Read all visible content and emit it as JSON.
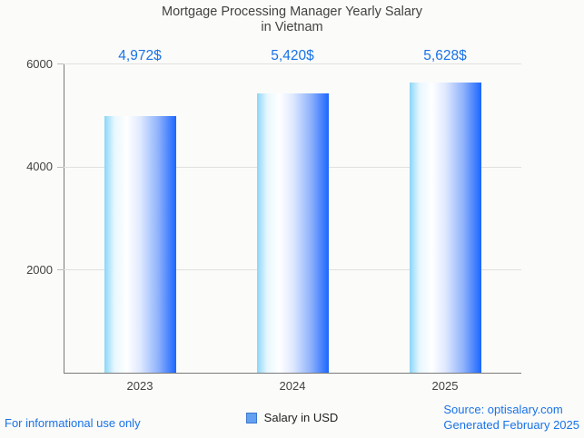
{
  "title": {
    "line1": "Mortgage Processing Manager Yearly Salary",
    "line2": "in Vietnam"
  },
  "chart_data": {
    "type": "bar",
    "title": "Mortgage Processing Manager Yearly Salary in Vietnam",
    "categories": [
      "2023",
      "2024",
      "2025"
    ],
    "values": [
      4972,
      5420,
      5628
    ],
    "value_labels": [
      "4,972$",
      "5,420$",
      "5,628$"
    ],
    "xlabel": "",
    "ylabel": "",
    "ylim": [
      0,
      6000
    ],
    "y_ticks": [
      6000,
      4000,
      2000
    ],
    "grid": true,
    "legend": {
      "label": "Salary in USD",
      "position": "bottom"
    }
  },
  "legend": {
    "label": "Salary in USD"
  },
  "footer": {
    "left": "For informational use only",
    "source_line1": "Source: optisalary.com",
    "source_line2": "Generated February 2025"
  },
  "colors": {
    "accent_blue": "#1a73e8",
    "title_text": "#424242",
    "axis_text": "#424242",
    "axis_line": "#7a7a7a",
    "gridline": "#e0e0e0",
    "background": "#fbfbf9",
    "legend_fill": "#63a0f0",
    "legend_border": "#3d77cc",
    "bar_gradient_stops": [
      {
        "c": "#8ad6f8",
        "p": 0
      },
      {
        "c": "#e8f7fe",
        "p": 14
      },
      {
        "c": "#ffffff",
        "p": 31
      },
      {
        "c": "#dfe9fe",
        "p": 50
      },
      {
        "c": "#8fb2fc",
        "p": 75
      },
      {
        "c": "#1b66fe",
        "p": 100
      }
    ]
  }
}
